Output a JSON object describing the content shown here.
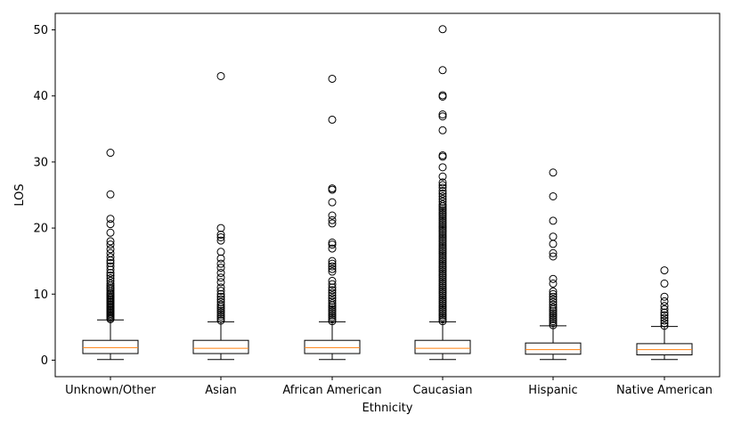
{
  "chart_data": {
    "type": "boxplot",
    "title": "",
    "xlabel": "Ethnicity",
    "ylabel": "LOS",
    "ylim": [
      -2.5,
      52.5
    ],
    "yticks": [
      0,
      10,
      20,
      30,
      40,
      50
    ],
    "categories": [
      "Unknown/Other",
      "Asian",
      "African American",
      "Caucasian",
      "Hispanic",
      "Native American"
    ],
    "colors": {
      "box": "#000000",
      "median": "#ff7f0e",
      "flier": "#000000",
      "background": "#ffffff"
    },
    "boxes": [
      {
        "category": "Unknown/Other",
        "whisker_low": 0.1,
        "q1": 1.0,
        "median": 1.9,
        "q3": 3.0,
        "whisker_high": 6.1,
        "fliers": [
          6.2,
          6.4,
          6.6,
          6.8,
          7.0,
          7.2,
          7.4,
          7.6,
          7.8,
          8.0,
          8.2,
          8.4,
          8.6,
          8.8,
          9.0,
          9.2,
          9.4,
          9.6,
          9.8,
          10.0,
          10.2,
          10.5,
          10.8,
          11.0,
          11.3,
          11.6,
          12.0,
          12.4,
          12.8,
          13.2,
          13.7,
          14.2,
          14.7,
          15.1,
          15.6,
          16.2,
          16.8,
          17.5,
          18.0,
          19.3,
          20.6,
          21.4,
          25.1,
          31.4
        ]
      },
      {
        "category": "Asian",
        "whisker_low": 0.1,
        "q1": 1.0,
        "median": 1.8,
        "q3": 3.0,
        "whisker_high": 5.8,
        "fliers": [
          6.0,
          6.3,
          6.6,
          6.9,
          7.2,
          7.5,
          7.8,
          8.1,
          8.4,
          8.8,
          9.2,
          9.6,
          10.0,
          10.5,
          11.0,
          11.8,
          12.5,
          13.2,
          14.0,
          14.6,
          15.4,
          16.4,
          18.1,
          18.6,
          19.0,
          20.0,
          43.0
        ]
      },
      {
        "category": "African American",
        "whisker_low": 0.1,
        "q1": 1.0,
        "median": 1.9,
        "q3": 3.0,
        "whisker_high": 5.8,
        "fliers": [
          5.9,
          6.2,
          6.5,
          6.8,
          7.1,
          7.4,
          7.7,
          8.0,
          8.3,
          8.6,
          9.0,
          9.4,
          9.8,
          10.2,
          10.6,
          11.0,
          11.5,
          12.0,
          13.4,
          13.8,
          14.2,
          14.6,
          15.0,
          16.9,
          17.5,
          17.8,
          20.7,
          21.2,
          21.9,
          23.9,
          25.8,
          26.0,
          36.4,
          42.6
        ]
      },
      {
        "category": "Caucasian",
        "whisker_low": 0.1,
        "q1": 1.0,
        "median": 1.8,
        "q3": 3.0,
        "whisker_high": 5.8,
        "fliers": [
          5.9,
          6.2,
          6.5,
          6.8,
          7.1,
          7.4,
          7.7,
          8.0,
          8.3,
          8.6,
          8.9,
          9.2,
          9.5,
          9.8,
          10.1,
          10.4,
          10.7,
          11.0,
          11.3,
          11.6,
          11.9,
          12.2,
          12.5,
          12.8,
          13.1,
          13.4,
          13.7,
          14.0,
          14.3,
          14.6,
          14.9,
          15.2,
          15.5,
          15.8,
          16.1,
          16.4,
          16.7,
          17.0,
          17.3,
          17.6,
          17.9,
          18.2,
          18.5,
          18.8,
          19.1,
          19.4,
          19.7,
          20.0,
          20.3,
          20.6,
          20.9,
          21.2,
          21.5,
          21.8,
          22.1,
          22.4,
          22.7,
          23.0,
          23.3,
          23.6,
          24.0,
          24.4,
          24.8,
          25.2,
          25.6,
          26.1,
          26.5,
          26.9,
          27.8,
          29.2,
          30.8,
          31.0,
          34.8,
          36.9,
          37.2,
          39.9,
          40.1,
          43.9,
          50.1
        ]
      },
      {
        "category": "Hispanic",
        "whisker_low": 0.1,
        "q1": 0.9,
        "median": 1.6,
        "q3": 2.6,
        "whisker_high": 5.2,
        "fliers": [
          5.3,
          5.6,
          5.9,
          6.2,
          6.5,
          6.8,
          7.1,
          7.4,
          7.7,
          8.0,
          8.4,
          8.8,
          9.2,
          9.6,
          10.0,
          10.4,
          11.6,
          12.3,
          15.7,
          16.2,
          17.6,
          18.7,
          21.1,
          24.8,
          28.4
        ]
      },
      {
        "category": "Native American",
        "whisker_low": 0.1,
        "q1": 0.8,
        "median": 1.6,
        "q3": 2.5,
        "whisker_high": 5.1,
        "fliers": [
          5.2,
          5.6,
          6.0,
          6.4,
          6.8,
          7.2,
          7.7,
          8.2,
          8.9,
          9.6,
          11.6,
          13.6
        ]
      }
    ]
  }
}
